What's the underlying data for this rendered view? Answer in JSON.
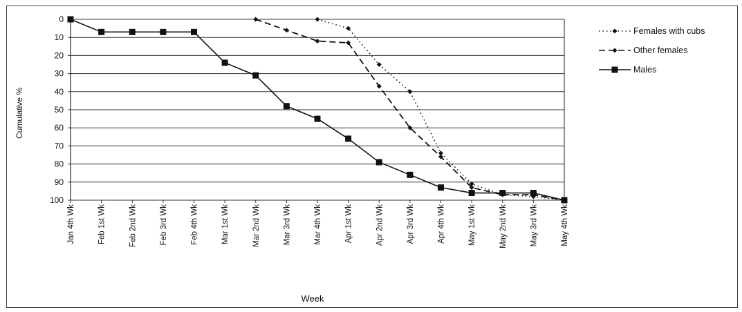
{
  "chart_data": {
    "type": "line",
    "title": "",
    "xlabel": "Week",
    "ylabel": "Cumulative %",
    "ylim": [
      0,
      100
    ],
    "y_inverted": true,
    "y_ticks": [
      0,
      10,
      20,
      30,
      40,
      50,
      60,
      70,
      80,
      90,
      100
    ],
    "grid": "horizontal",
    "legend_position": "top-right",
    "categories": [
      "Jan 4th Wk",
      "Feb 1st Wk",
      "Feb 2nd Wk",
      "Feb 3rd Wk",
      "Feb 4th Wk",
      "Mar 1st Wk",
      "Mar 2nd Wk",
      "Mar 3rd Wk",
      "Mar 4th Wk",
      "Apr 1st Wk",
      "Apr 2nd Wk",
      "Apr 3rd Wk",
      "Apr 4th Wk",
      "May 1st Wk",
      "May 2nd Wk",
      "May 3rd Wk",
      "May 4th Wk"
    ],
    "series": [
      {
        "name": "Females with cubs",
        "style": "dotted",
        "marker": "diamond",
        "values": [
          null,
          null,
          null,
          null,
          null,
          null,
          null,
          null,
          0,
          5,
          25,
          40,
          74,
          91,
          97,
          98,
          100
        ]
      },
      {
        "name": "Other females",
        "style": "dashed",
        "marker": "diamond",
        "values": [
          null,
          null,
          null,
          null,
          null,
          null,
          0,
          6,
          12,
          13,
          37,
          60,
          76,
          93,
          97,
          97,
          100
        ]
      },
      {
        "name": "Males",
        "style": "solid",
        "marker": "square",
        "values": [
          0,
          7,
          7,
          7,
          7,
          24,
          31,
          48,
          55,
          66,
          79,
          86,
          93,
          96,
          96,
          96,
          100
        ]
      }
    ]
  }
}
